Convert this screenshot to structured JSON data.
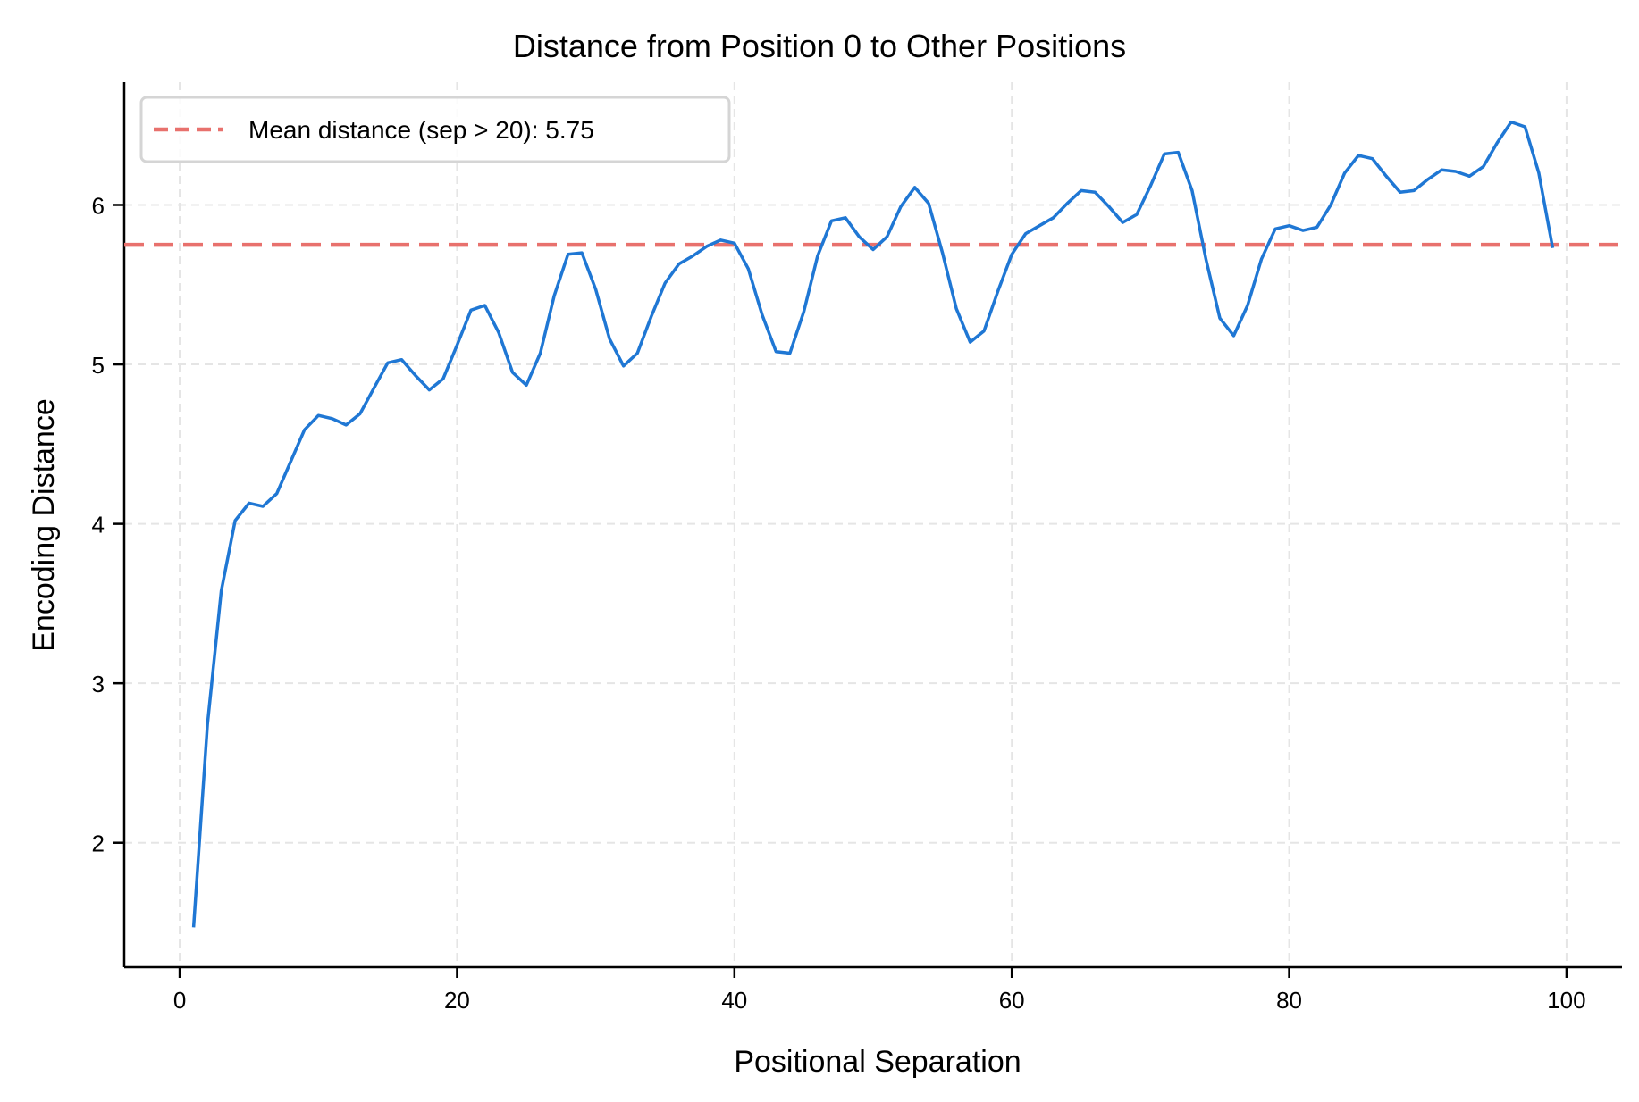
{
  "chart_data": {
    "type": "line",
    "title": "Distance from Position 0 to Other Positions",
    "xlabel": "Positional Separation",
    "ylabel": "Encoding Distance",
    "xlim": [
      -4,
      104
    ],
    "ylim": [
      1.22,
      6.77
    ],
    "xticks": [
      0,
      20,
      40,
      60,
      80,
      100
    ],
    "yticks": [
      2,
      3,
      4,
      5,
      6
    ],
    "grid": true,
    "legend_position": "upper left",
    "series": [
      {
        "name": "Encoding distance",
        "color": "#1f77d4",
        "x": [
          1,
          2,
          3,
          4,
          5,
          6,
          7,
          8,
          9,
          10,
          11,
          12,
          13,
          14,
          15,
          16,
          17,
          18,
          19,
          20,
          21,
          22,
          23,
          24,
          25,
          26,
          27,
          28,
          29,
          30,
          31,
          32,
          33,
          34,
          35,
          36,
          37,
          38,
          39,
          40,
          41,
          42,
          43,
          44,
          45,
          46,
          47,
          48,
          49,
          50,
          51,
          52,
          53,
          54,
          55,
          56,
          57,
          58,
          59,
          60,
          61,
          62,
          63,
          64,
          65,
          66,
          67,
          68,
          69,
          70,
          71,
          72,
          73,
          74,
          75,
          76,
          77,
          78,
          79,
          80,
          81,
          82,
          83,
          84,
          85,
          86,
          87,
          88,
          89,
          90,
          91,
          92,
          93,
          94,
          95,
          96,
          97,
          98,
          99
        ],
        "values": [
          1.47,
          2.74,
          3.58,
          4.02,
          4.13,
          4.11,
          4.19,
          4.39,
          4.59,
          4.68,
          4.66,
          4.62,
          4.69,
          4.85,
          5.01,
          5.03,
          4.93,
          4.84,
          4.91,
          5.12,
          5.34,
          5.37,
          5.2,
          4.95,
          4.87,
          5.07,
          5.43,
          5.69,
          5.7,
          5.47,
          5.16,
          4.99,
          5.07,
          5.3,
          5.51,
          5.63,
          5.68,
          5.74,
          5.78,
          5.76,
          5.6,
          5.31,
          5.08,
          5.07,
          5.33,
          5.68,
          5.9,
          5.92,
          5.8,
          5.72,
          5.8,
          5.99,
          6.11,
          6.01,
          5.7,
          5.35,
          5.14,
          5.21,
          5.46,
          5.69,
          5.82,
          5.87,
          5.92,
          6.01,
          6.09,
          6.08,
          5.99,
          5.89,
          5.94,
          6.12,
          6.32,
          6.33,
          6.09,
          5.66,
          5.29,
          5.18,
          5.37,
          5.66,
          5.85,
          5.87,
          5.84,
          5.86,
          6.0,
          6.2,
          6.31,
          6.29,
          6.18,
          6.08,
          6.09,
          6.16,
          6.22,
          6.21,
          6.18,
          6.24,
          6.39,
          6.52,
          6.49,
          6.2,
          5.73
        ]
      }
    ],
    "reference_lines": [
      {
        "name": "Mean distance (sep > 20): 5.75",
        "y": 5.75,
        "style": "dashed",
        "color": "#e8716d"
      }
    ],
    "legend": [
      "Mean distance (sep > 20): 5.75"
    ]
  },
  "colors": {
    "line": "#1f77d4",
    "mean_line": "#e8716d",
    "grid": "#e5e5e5",
    "axis": "#000000"
  }
}
